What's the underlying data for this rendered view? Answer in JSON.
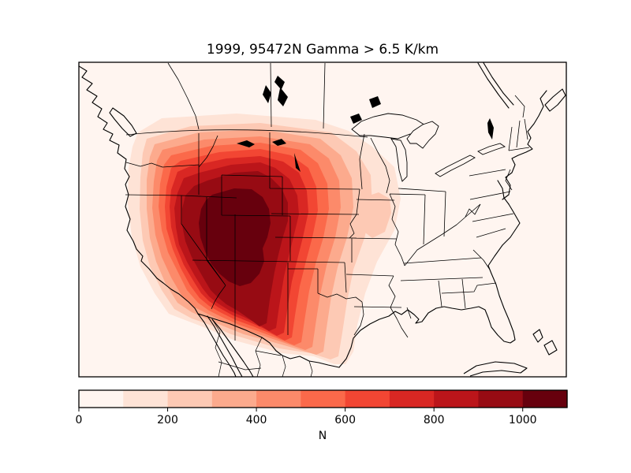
{
  "figure": {
    "title": "1999, 95472N Gamma > 6.5 K/km",
    "background_color": "#ffffff",
    "frame_color": "#000000"
  },
  "colorbar": {
    "label": "N",
    "ticks": [
      "0",
      "200",
      "400",
      "600",
      "800",
      "1000"
    ],
    "tick_values": [
      0,
      200,
      400,
      600,
      800,
      1000
    ],
    "min": 0,
    "max": 1100,
    "colors": [
      "#fff5f0",
      "#fee3d6",
      "#fdc9b4",
      "#fcaa8d",
      "#fc8a6a",
      "#fb694a",
      "#f24633",
      "#d92723",
      "#bb151a",
      "#970b13",
      "#67000d"
    ]
  },
  "chart_data": {
    "type": "heatmap",
    "subtype": "filled-contour-map",
    "title": "1999, 95472N Gamma > 6.5 K/km",
    "colorbar_label": "N",
    "region": "Contiguous United States with southern Canada and northern Mexico, state and province borders drawn",
    "levels": [
      0,
      100,
      200,
      300,
      400,
      500,
      600,
      700,
      800,
      900,
      1000,
      1100
    ],
    "colors": [
      "#fff5f0",
      "#fee3d6",
      "#fdc9b4",
      "#fcaa8d",
      "#fc8a6a",
      "#fb694a",
      "#f24633",
      "#d92723",
      "#bb151a",
      "#970b13",
      "#67000d"
    ],
    "colormap": "Reds",
    "peak": {
      "value": "1000-1100",
      "location": "Four Corners region (eastern Utah / western Colorado)"
    },
    "pattern": "Concentric filled contours of N centered over the Colorado-Utah Rockies, above 900 over Nevada-Utah-Colorado, decreasing outward through Idaho, Wyoming, Montana, Arizona and New Mexico, fading below 100 east of the Great Plains, along the Pacific coast, and south of the Mexican border; background level 0-100 elsewhere including oceans"
  }
}
